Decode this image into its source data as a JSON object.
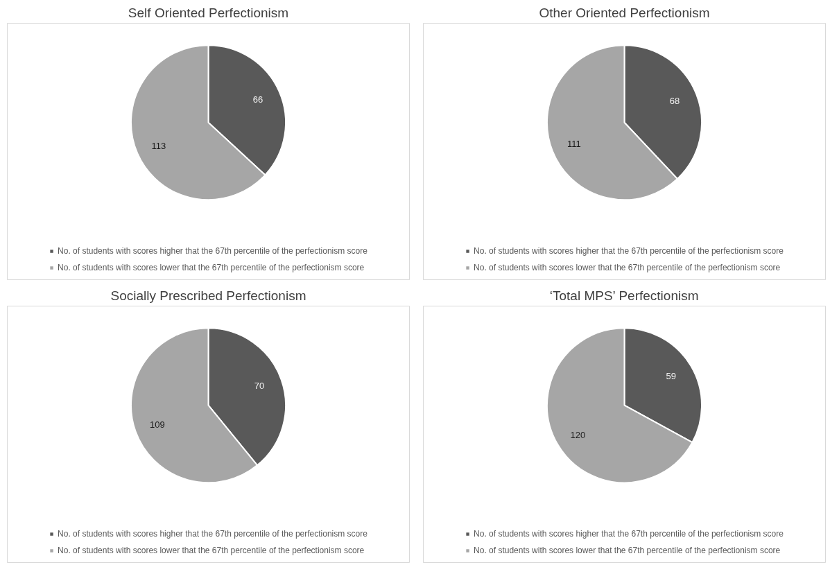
{
  "chart_data": [
    {
      "type": "pie",
      "title": "Self Oriented Perfectionism",
      "categories": [
        "No. of students with scores higher that the 67th percentile of the perfectionism score",
        "No. of students with scores lower that the 67th percentile of the perfectionism score"
      ],
      "values": [
        66,
        113
      ],
      "colors": [
        "#595959",
        "#a6a6a6"
      ],
      "data_labels": true,
      "legend": "bottom"
    },
    {
      "type": "pie",
      "title": "Other Oriented Perfectionism",
      "categories": [
        "No. of students with scores higher that the 67th percentile of the perfectionism score",
        "No. of students with scores lower that the 67th percentile of the perfectionism score"
      ],
      "values": [
        68,
        111
      ],
      "colors": [
        "#595959",
        "#a6a6a6"
      ],
      "data_labels": true,
      "legend": "bottom"
    },
    {
      "type": "pie",
      "title": "Socially Prescribed Perfectionism",
      "categories": [
        "No. of students with scores higher that the 67th percentile of the perfectionism score",
        "No. of students with scores lower that the 67th percentile of the perfectionism score"
      ],
      "values": [
        70,
        109
      ],
      "colors": [
        "#595959",
        "#a6a6a6"
      ],
      "data_labels": true,
      "legend": "bottom"
    },
    {
      "type": "pie",
      "title": "‘Total MPS’ Perfectionism",
      "categories": [
        "No. of students with scores higher that the 67th percentile of the perfectionism score",
        "No. of students with scores lower that the 67th percentile of the perfectionism score"
      ],
      "values": [
        59,
        120
      ],
      "colors": [
        "#595959",
        "#a6a6a6"
      ],
      "data_labels": true,
      "legend": "bottom"
    }
  ]
}
